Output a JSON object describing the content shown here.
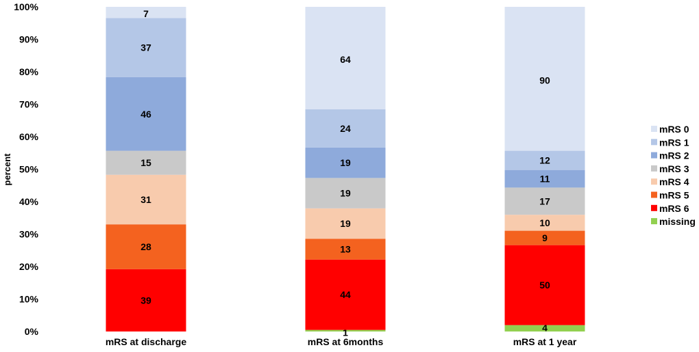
{
  "chart_data": {
    "type": "bar",
    "stacked": true,
    "normalized": true,
    "categories": [
      "mRS at discharge",
      "mRS at 6months",
      "mRS at 1 year"
    ],
    "ylabel": "percent",
    "xlabel": "",
    "ylim": [
      0,
      100
    ],
    "yticks": [
      "0%",
      "10%",
      "20%",
      "30%",
      "40%",
      "50%",
      "60%",
      "70%",
      "80%",
      "90%",
      "100%"
    ],
    "legend_position": "right",
    "grid": false,
    "series": [
      {
        "name": "missing",
        "color": "#92d050",
        "values": [
          0,
          1,
          4
        ]
      },
      {
        "name": "mRS 6",
        "color": "#ff0000",
        "values": [
          39,
          44,
          50
        ]
      },
      {
        "name": "mRS 5",
        "color": "#f4621f",
        "values": [
          28,
          13,
          9
        ]
      },
      {
        "name": "mRS 4",
        "color": "#f8cbad",
        "values": [
          31,
          19,
          10
        ]
      },
      {
        "name": "mRS 3",
        "color": "#c9c9c9",
        "values": [
          15,
          19,
          17
        ]
      },
      {
        "name": "mRS 2",
        "color": "#8eaadb",
        "values": [
          46,
          19,
          11
        ]
      },
      {
        "name": "mRS 1",
        "color": "#b4c7e7",
        "values": [
          37,
          24,
          12
        ]
      },
      {
        "name": "mRS 0",
        "color": "#dae3f3",
        "values": [
          7,
          64,
          90
        ]
      }
    ],
    "legend_order": [
      "mRS 0",
      "mRS 1",
      "mRS 2",
      "mRS 3",
      "mRS 4",
      "mRS 5",
      "mRS 6",
      "missing"
    ]
  }
}
